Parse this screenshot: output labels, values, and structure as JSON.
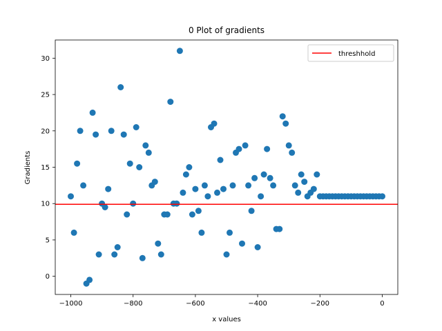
{
  "chart_data": {
    "type": "scatter",
    "title": "0 Plot of gradients",
    "xlabel": "x values",
    "ylabel": "Gradients",
    "xlim": [
      -1050,
      50
    ],
    "ylim": [
      -2.5,
      32.5
    ],
    "xticks": [
      -1000,
      -800,
      -600,
      -400,
      -200,
      0
    ],
    "xtick_labels": [
      "−1000",
      "−800",
      "−600",
      "−400",
      "−200",
      "0"
    ],
    "yticks": [
      0,
      5,
      10,
      15,
      20,
      25,
      30
    ],
    "ytick_labels": [
      "0",
      "5",
      "10",
      "15",
      "20",
      "25",
      "30"
    ],
    "grid": false,
    "legend_position": "top-right",
    "point_color": "#1f77b4",
    "series": [
      {
        "x": [
          -1000,
          -990,
          -980,
          -970,
          -960,
          -950,
          -940,
          -930,
          -920,
          -910,
          -900,
          -890,
          -880,
          -870,
          -860,
          -850,
          -840,
          -830,
          -820,
          -810,
          -800,
          -790,
          -780,
          -770,
          -760,
          -750,
          -740,
          -730,
          -720,
          -710,
          -700,
          -690,
          -680,
          -670,
          -660,
          -650,
          -640,
          -630,
          -620,
          -610,
          -600,
          -590,
          -580,
          -570,
          -560,
          -550,
          -540,
          -530,
          -520,
          -510,
          -500,
          -490,
          -480,
          -470,
          -460,
          -450,
          -440,
          -430,
          -420,
          -410,
          -400,
          -390,
          -380,
          -370,
          -360,
          -350,
          -340,
          -330,
          -320,
          -310,
          -300,
          -290,
          -280,
          -270,
          -260,
          -250,
          -240,
          -230,
          -220,
          -210,
          -200,
          -190,
          -180,
          -170,
          -160,
          -150,
          -140,
          -130,
          -120,
          -110,
          -100,
          -90,
          -80,
          -70,
          -60,
          -50,
          -40,
          -30,
          -20,
          -10,
          0
        ],
        "y": [
          11,
          6,
          15.5,
          20,
          12.5,
          -1,
          -0.5,
          22.5,
          19.5,
          3,
          10,
          9.5,
          12,
          20,
          3,
          4,
          26,
          19.5,
          8.5,
          15.5,
          10,
          20.5,
          15,
          2.5,
          18,
          17,
          12.5,
          13,
          4.5,
          3,
          8.5,
          8.5,
          24,
          10,
          10,
          31,
          11.5,
          14,
          15,
          8.5,
          12,
          9,
          6,
          12.5,
          11,
          20.5,
          21,
          11.5,
          16,
          12,
          3,
          6,
          12.5,
          17,
          17.5,
          4.5,
          18,
          12.5,
          9,
          13.5,
          4,
          11,
          14,
          17.5,
          13.5,
          12.5,
          6.5,
          6.5,
          22,
          21,
          18,
          17,
          12.5,
          11.5,
          14,
          13,
          11,
          11.5,
          12,
          14,
          11,
          11,
          11,
          11,
          11,
          11,
          11,
          11,
          11,
          11,
          11,
          11,
          11,
          11,
          11,
          11,
          11,
          11,
          11,
          11,
          11
        ]
      }
    ],
    "threshold": {
      "name": "threshhold",
      "value": 9.9,
      "color": "#ff0000"
    }
  }
}
